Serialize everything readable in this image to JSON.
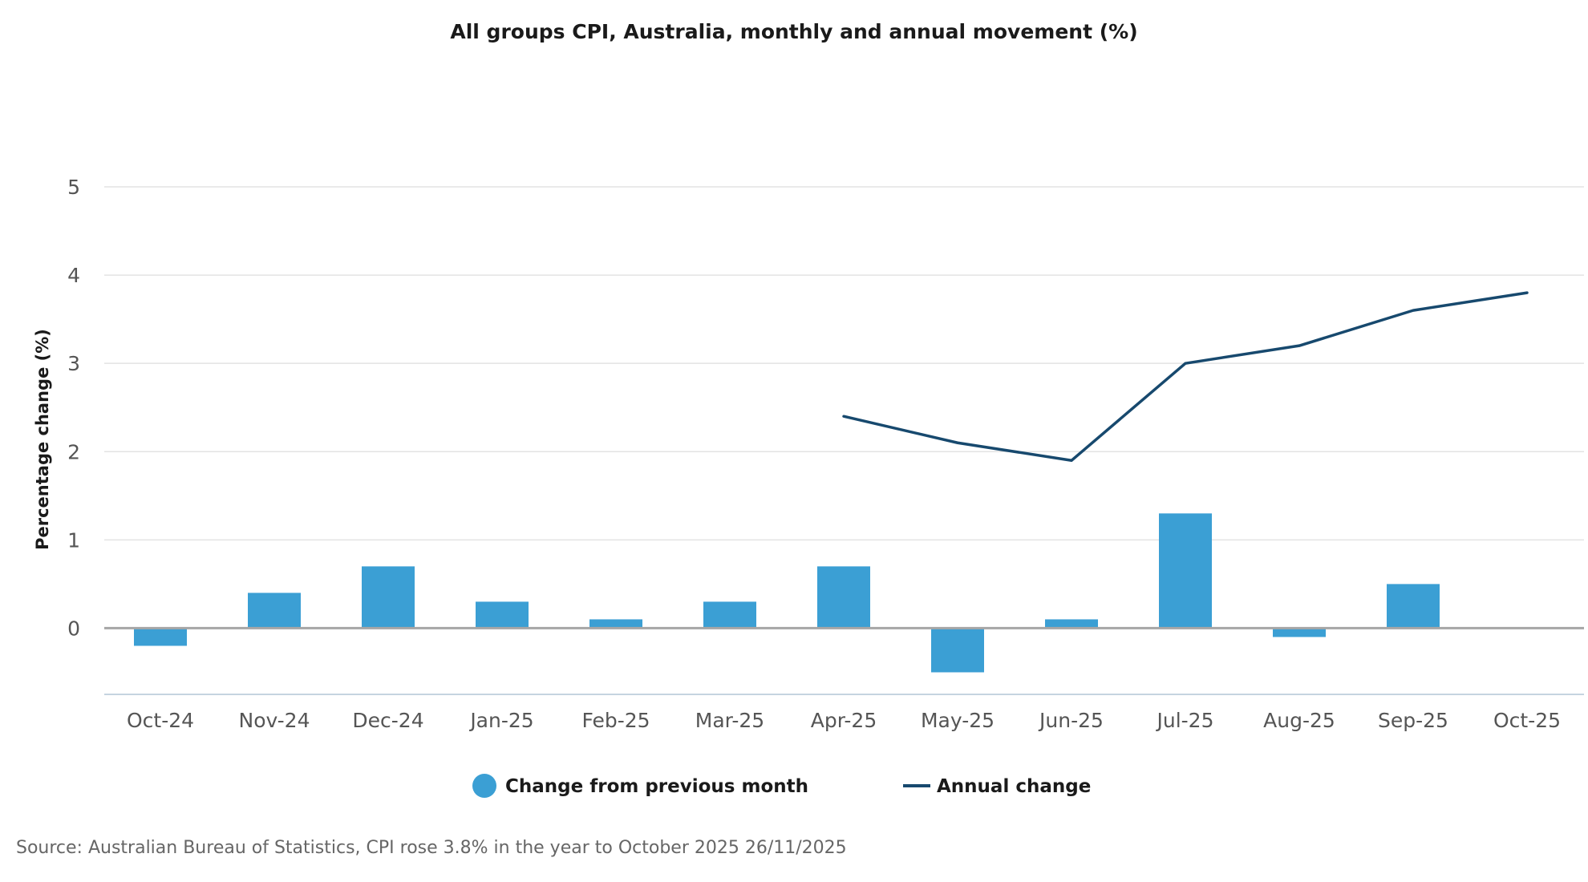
{
  "chart_data": {
    "type": "bar",
    "title": "All groups CPI, Australia, monthly and annual movement (%)",
    "ylabel": "Percentage change (%)",
    "xlabel": "",
    "ylim": [
      -0.75,
      5
    ],
    "yticks": [
      0,
      1,
      2,
      3,
      4,
      5
    ],
    "grid": true,
    "legend_position": "bottom",
    "categories": [
      "Oct-24",
      "Nov-24",
      "Dec-24",
      "Jan-25",
      "Feb-25",
      "Mar-25",
      "Apr-25",
      "May-25",
      "Jun-25",
      "Jul-25",
      "Aug-25",
      "Sep-25",
      "Oct-25"
    ],
    "series": [
      {
        "name": "Change from previous month",
        "type": "bar",
        "color": "#3b9fd4",
        "values": [
          -0.2,
          0.4,
          0.7,
          0.3,
          0.1,
          0.3,
          0.7,
          -0.5,
          0.1,
          1.3,
          -0.1,
          0.5,
          0.0
        ]
      },
      {
        "name": "Annual change",
        "type": "line",
        "color": "#17496e",
        "values": [
          null,
          null,
          null,
          null,
          null,
          null,
          2.4,
          2.1,
          1.9,
          3.0,
          3.2,
          3.6,
          3.8
        ]
      }
    ]
  },
  "source": "Source: Australian Bureau of Statistics, CPI rose 3.8% in the year to October 2025 26/11/2025"
}
